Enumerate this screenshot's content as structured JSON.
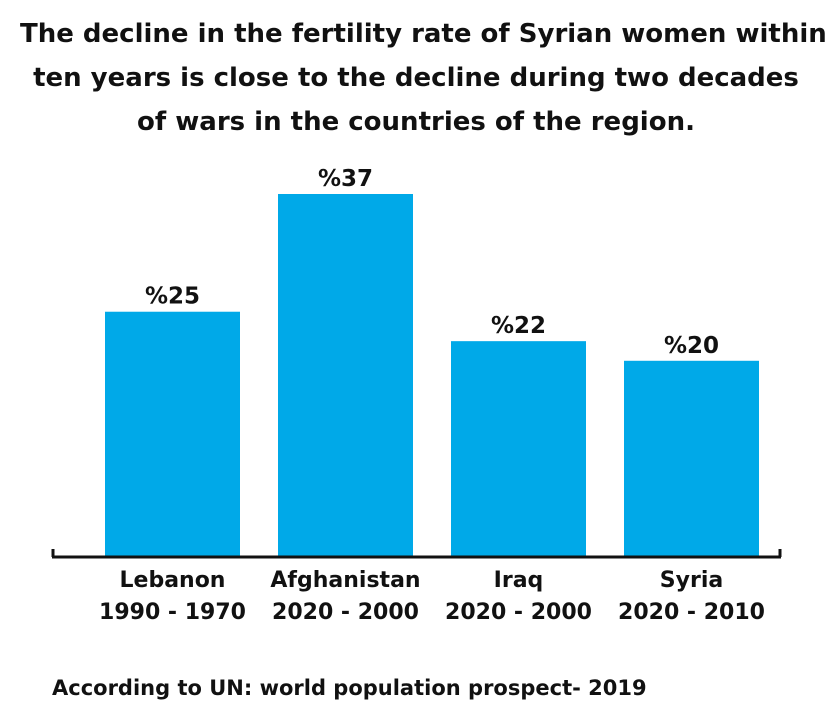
{
  "chart_data": {
    "type": "bar",
    "title_lines": [
      "The decline in the fertility rate of Syrian women within",
      "ten years is close to the decline during two decades",
      "of wars in the countries of the region."
    ],
    "categories": [
      "Lebanon",
      "Afghanistan",
      "Iraq",
      "Syria"
    ],
    "periods": [
      "1990 - 1970",
      "2020 - 2000",
      "2020 - 2000",
      "2020 - 2010"
    ],
    "values": [
      25,
      37,
      22,
      20
    ],
    "data_labels": [
      "%25",
      "%37",
      "%22",
      "%20"
    ],
    "ylim": [
      0,
      37
    ],
    "xlabel": "",
    "ylabel": "",
    "bar_color": "#00a9e8",
    "axis_color": "#111111",
    "grid": false,
    "legend": "none"
  },
  "source_note": "According to UN: world population prospect- 2019"
}
